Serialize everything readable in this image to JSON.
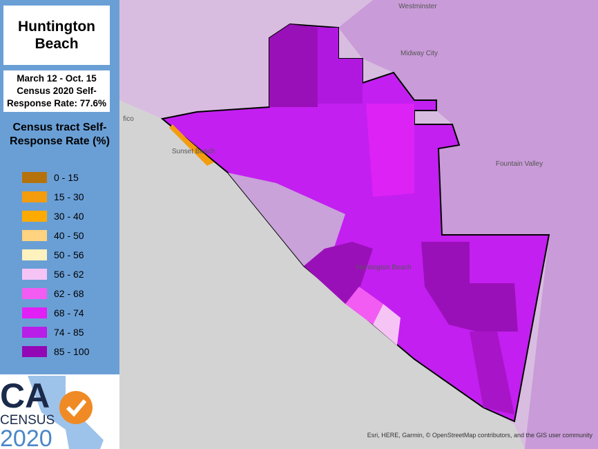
{
  "panel": {
    "title": "Huntington Beach",
    "subtitle": "March 12 - Oct. 15 Census 2020 Self-Response Rate: 77.6%",
    "legend": {
      "title": "Census tract Self-Response Rate (%)",
      "items": [
        {
          "label": "0 - 15",
          "color": "#b5720a"
        },
        {
          "label": "15 - 30",
          "color": "#f29c0e"
        },
        {
          "label": "30 - 40",
          "color": "#ffaa00"
        },
        {
          "label": "40 - 50",
          "color": "#ffd37f"
        },
        {
          "label": "50 - 56",
          "color": "#fff2bf"
        },
        {
          "label": "56 - 62",
          "color": "#f5c4f5"
        },
        {
          "label": "62 - 68",
          "color": "#f25cf2"
        },
        {
          "label": "68 - 74",
          "color": "#e020f5"
        },
        {
          "label": "74 - 85",
          "color": "#b81ee8"
        },
        {
          "label": "85 - 100",
          "color": "#9208b5"
        }
      ]
    },
    "logo": {
      "state": "CA",
      "word": "CENSUS",
      "year": "2020"
    }
  },
  "map": {
    "labels": [
      "Westminster",
      "Midway City",
      "Fountain Valley",
      "Huntington Beach",
      "Sunset Beach",
      "fico"
    ],
    "attribution": "Esri, HERE, Garmin, © OpenStreetMap contributors, and the GIS user community"
  }
}
